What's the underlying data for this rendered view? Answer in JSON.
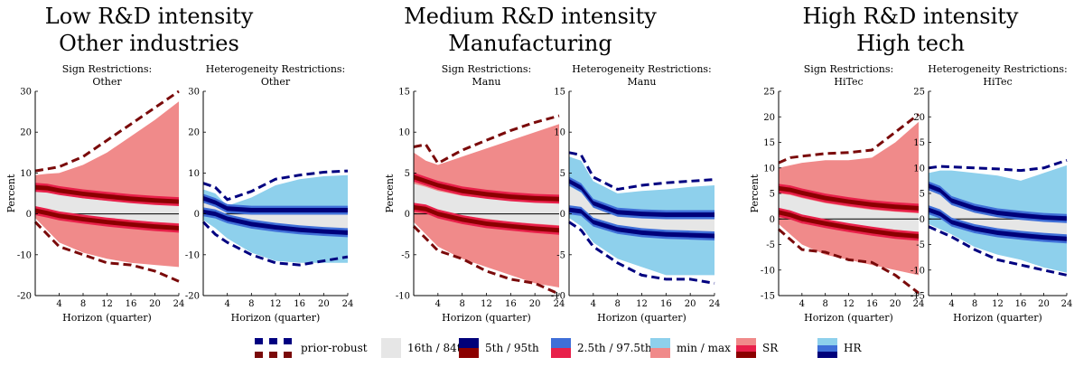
{
  "groups": [
    {
      "title1": "Low R&D intensity",
      "title2": "Other industries"
    },
    {
      "title1": "Medium R&D intensity",
      "title2": "Manufacturing"
    },
    {
      "title1": "High R&D intensity",
      "title2": "High tech"
    }
  ],
  "colors": {
    "sr_minmax": "#f08a8a",
    "sr_25": "#e8204a",
    "sr_5": "#8b0000",
    "sr_prior": "#7a0a0a",
    "hr_minmax": "#8ed0ec",
    "hr_25": "#3f6fd8",
    "hr_5": "#00007a",
    "hr_prior": "#000080",
    "band_16": "#e6e6e6"
  },
  "legend": [
    {
      "label": "prior-robust",
      "swatch": "prior"
    },
    {
      "label": "16th / 84th",
      "swatch": "band16"
    },
    {
      "label": "5th / 95th",
      "swatch": "band5"
    },
    {
      "label": "2.5th / 97.5th",
      "swatch": "band25"
    },
    {
      "label": "min / max",
      "swatch": "minmax"
    },
    {
      "label": "SR",
      "swatch": "sr"
    },
    {
      "label": "HR",
      "swatch": "hr"
    }
  ],
  "chart_data": [
    {
      "type": "area",
      "title": "Sign Restrictions:",
      "subtitle": "Other",
      "method": "SR",
      "xlabel": "Horizon (quarter)",
      "ylabel": "Percent",
      "xlim": [
        0,
        24
      ],
      "ylim": [
        -20,
        30
      ],
      "xticks": [
        4,
        8,
        12,
        16,
        20,
        24
      ],
      "yticks": [
        -20,
        -10,
        0,
        10,
        20,
        30
      ],
      "x": [
        0,
        2,
        4,
        8,
        12,
        16,
        20,
        24
      ],
      "series": [
        {
          "band": "minmax_upper",
          "values": [
            9.5,
            9.8,
            10,
            12,
            15,
            19,
            23,
            27.5
          ]
        },
        {
          "band": "minmax_lower",
          "values": [
            -1,
            -4,
            -7,
            -9.5,
            -11,
            -12,
            -12.5,
            -13
          ]
        },
        {
          "band": "prior_upper",
          "values": [
            10.5,
            11,
            11.5,
            14,
            18,
            22,
            26,
            30
          ]
        },
        {
          "band": "prior_lower",
          "values": [
            -2,
            -5,
            -8,
            -10,
            -12,
            -12.5,
            -14,
            -16.5
          ]
        },
        {
          "band": "p95",
          "values": [
            6.5,
            6.3,
            5.7,
            4.9,
            4.3,
            3.7,
            3.3,
            3
          ]
        },
        {
          "band": "p5",
          "values": [
            0.8,
            0.2,
            -0.5,
            -1.3,
            -2,
            -2.6,
            -3.1,
            -3.5
          ]
        },
        {
          "band": "p84",
          "values": [
            5.5,
            5.2,
            4.7,
            3.8,
            3.2,
            2.7,
            2.3,
            2
          ]
        },
        {
          "band": "p16",
          "values": [
            1.6,
            1,
            0.3,
            -0.6,
            -1.2,
            -1.6,
            -2,
            -2.3
          ]
        }
      ]
    },
    {
      "type": "area",
      "title": "Heterogeneity Restrictions:",
      "subtitle": "Other",
      "method": "HR",
      "xlabel": "Horizon (quarter)",
      "ylabel": "",
      "xlim": [
        0,
        24
      ],
      "ylim": [
        -20,
        30
      ],
      "xticks": [
        4,
        8,
        12,
        16,
        20,
        24
      ],
      "yticks": [
        -20,
        -10,
        0,
        10,
        20,
        30
      ],
      "x": [
        0,
        2,
        4,
        8,
        12,
        16,
        20,
        24
      ],
      "series": [
        {
          "band": "minmax_upper",
          "values": [
            6,
            5,
            2,
            4,
            7,
            8.5,
            9.2,
            9.5
          ]
        },
        {
          "band": "minmax_lower",
          "values": [
            -1.5,
            -3.5,
            -6,
            -9.5,
            -11.5,
            -12,
            -12,
            -12
          ]
        },
        {
          "band": "prior_upper",
          "values": [
            7.5,
            6.5,
            3.5,
            5.5,
            8.5,
            9.5,
            10.2,
            10.5
          ]
        },
        {
          "band": "prior_lower",
          "values": [
            -2,
            -5,
            -7,
            -10,
            -12,
            -12.5,
            -11.5,
            -10.5
          ]
        },
        {
          "band": "p95",
          "values": [
            3.8,
            2.8,
            1.3,
            0.9,
            0.9,
            0.9,
            0.9,
            0.9
          ]
        },
        {
          "band": "p5",
          "values": [
            0.5,
            0,
            -1.2,
            -2.5,
            -3.3,
            -3.9,
            -4.3,
            -4.6
          ]
        },
        {
          "band": "p84",
          "values": [
            3.2,
            2.3,
            0.9,
            0.5,
            0.4,
            0.4,
            0.4,
            0.4
          ]
        },
        {
          "band": "p16",
          "values": [
            1,
            0.5,
            -0.6,
            -1.8,
            -2.6,
            -3.2,
            -3.6,
            -3.9
          ]
        }
      ]
    },
    {
      "type": "area",
      "title": "Sign Restrictions:",
      "subtitle": "Manu",
      "method": "SR",
      "xlabel": "Horizon (quarter)",
      "ylabel": "Percent",
      "xlim": [
        0,
        24
      ],
      "ylim": [
        -10,
        15
      ],
      "xticks": [
        4,
        8,
        12,
        16,
        20,
        24
      ],
      "yticks": [
        -10,
        -5,
        0,
        5,
        10,
        15
      ],
      "x": [
        0,
        2,
        4,
        8,
        12,
        16,
        20,
        24
      ],
      "series": [
        {
          "band": "minmax_upper",
          "values": [
            7.5,
            6.5,
            6,
            7,
            8,
            9,
            10,
            11
          ]
        },
        {
          "band": "minmax_lower",
          "values": [
            -1,
            -2.5,
            -4,
            -5.5,
            -6.5,
            -7.5,
            -8.5,
            -9
          ]
        },
        {
          "band": "prior_upper",
          "values": [
            8.2,
            8.5,
            6.2,
            7.8,
            9,
            10.2,
            11.2,
            12
          ]
        },
        {
          "band": "prior_lower",
          "values": [
            -1.5,
            -3,
            -4.5,
            -5.5,
            -7,
            -8,
            -8.5,
            -9.8
          ]
        },
        {
          "band": "p95",
          "values": [
            4.5,
            4,
            3.5,
            2.8,
            2.4,
            2.1,
            1.9,
            1.8
          ]
        },
        {
          "band": "p5",
          "values": [
            0.8,
            0.6,
            0,
            -0.7,
            -1.2,
            -1.5,
            -1.8,
            -2
          ]
        },
        {
          "band": "p84",
          "values": [
            3.7,
            3.3,
            2.8,
            2.2,
            1.9,
            1.6,
            1.4,
            1.3
          ]
        },
        {
          "band": "p16",
          "values": [
            1.2,
            0.9,
            0.4,
            -0.2,
            -0.6,
            -1,
            -1.2,
            -1.4
          ]
        }
      ]
    },
    {
      "type": "area",
      "title": "Heterogeneity Restrictions:",
      "subtitle": "Manu",
      "method": "HR",
      "xlabel": "Horizon (quarter)",
      "ylabel": "",
      "xlim": [
        0,
        24
      ],
      "ylim": [
        -10,
        15
      ],
      "xticks": [
        4,
        8,
        12,
        16,
        20,
        24
      ],
      "yticks": [
        -10,
        -5,
        0,
        5,
        10,
        15
      ],
      "x": [
        0,
        2,
        4,
        8,
        12,
        16,
        20,
        24
      ],
      "series": [
        {
          "band": "minmax_upper",
          "values": [
            7,
            6.5,
            4,
            2.5,
            2.8,
            3,
            3.3,
            3.5
          ]
        },
        {
          "band": "minmax_lower",
          "values": [
            -0.5,
            -1.5,
            -3.5,
            -5.5,
            -6.5,
            -7.5,
            -7.5,
            -7.5
          ]
        },
        {
          "band": "prior_upper",
          "values": [
            7.5,
            7.2,
            4.5,
            3,
            3.5,
            3.8,
            4,
            4.2
          ]
        },
        {
          "band": "prior_lower",
          "values": [
            -1,
            -2,
            -4,
            -6,
            -7.5,
            -8,
            -8,
            -8.5
          ]
        },
        {
          "band": "p95",
          "values": [
            4,
            3.2,
            1.3,
            0.2,
            0,
            -0.1,
            -0.1,
            -0.1
          ]
        },
        {
          "band": "p5",
          "values": [
            0.5,
            0.3,
            -1,
            -1.9,
            -2.3,
            -2.5,
            -2.6,
            -2.7
          ]
        },
        {
          "band": "p84",
          "values": [
            3.4,
            2.6,
            0.9,
            -0.1,
            -0.3,
            -0.4,
            -0.4,
            -0.4
          ]
        },
        {
          "band": "p16",
          "values": [
            1,
            0.7,
            -0.7,
            -1.6,
            -2,
            -2.2,
            -2.3,
            -2.4
          ]
        }
      ]
    },
    {
      "type": "area",
      "title": "Sign Restrictions:",
      "subtitle": "HiTec",
      "method": "SR",
      "xlabel": "Horizon (quarter)",
      "ylabel": "Percent",
      "xlim": [
        0,
        24
      ],
      "ylim": [
        -15,
        25
      ],
      "xticks": [
        4,
        8,
        12,
        16,
        20,
        24
      ],
      "yticks": [
        -15,
        -10,
        -5,
        0,
        5,
        10,
        15,
        20,
        25
      ],
      "x": [
        0,
        2,
        4,
        8,
        12,
        16,
        20,
        24
      ],
      "series": [
        {
          "band": "minmax_upper",
          "values": [
            10,
            10.5,
            11,
            11.5,
            11.5,
            12,
            15,
            19
          ]
        },
        {
          "band": "minmax_lower",
          "values": [
            -1,
            -3,
            -5,
            -7,
            -8,
            -9,
            -10,
            -11
          ]
        },
        {
          "band": "prior_upper",
          "values": [
            11,
            12,
            12.3,
            12.8,
            13,
            13.5,
            17,
            20.5
          ]
        },
        {
          "band": "prior_lower",
          "values": [
            -2,
            -4,
            -6,
            -6.5,
            -8,
            -8.5,
            -11,
            -14.5
          ]
        },
        {
          "band": "p95",
          "values": [
            6,
            5.7,
            5.1,
            4.1,
            3.4,
            2.8,
            2.4,
            2.1
          ]
        },
        {
          "band": "p5",
          "values": [
            1.3,
            0.8,
            0,
            -0.9,
            -1.7,
            -2.4,
            -3,
            -3.4
          ]
        },
        {
          "band": "p84",
          "values": [
            5,
            4.7,
            4.1,
            3.1,
            2.4,
            1.8,
            1.4,
            1.1
          ]
        },
        {
          "band": "p16",
          "values": [
            2,
            1.5,
            0.7,
            -0.3,
            -1,
            -1.6,
            -2.1,
            -2.5
          ]
        }
      ]
    },
    {
      "type": "area",
      "title": "Heterogeneity Restrictions:",
      "subtitle": "HiTec",
      "method": "HR",
      "xlabel": "Horizon (quarter)",
      "ylabel": "",
      "xlim": [
        0,
        24
      ],
      "ylim": [
        -15,
        25
      ],
      "xticks": [
        4,
        8,
        12,
        16,
        20,
        24
      ],
      "yticks": [
        -15,
        -10,
        -5,
        0,
        5,
        10,
        15,
        20,
        25
      ],
      "x": [
        0,
        2,
        4,
        8,
        12,
        16,
        20,
        24
      ],
      "series": [
        {
          "band": "minmax_upper",
          "values": [
            9,
            9.5,
            9.5,
            9,
            8.5,
            7.5,
            9,
            10.5
          ]
        },
        {
          "band": "minmax_lower",
          "values": [
            -1,
            -2,
            -3,
            -5.5,
            -7,
            -8,
            -9.5,
            -10.5
          ]
        },
        {
          "band": "prior_upper",
          "values": [
            10,
            10.3,
            10.2,
            10,
            9.8,
            9.5,
            10,
            11.5
          ]
        },
        {
          "band": "prior_lower",
          "values": [
            -1.5,
            -2.5,
            -3.5,
            -6,
            -8,
            -9,
            -10,
            -11
          ]
        },
        {
          "band": "p95",
          "values": [
            6.5,
            5.6,
            3.6,
            2.1,
            1.2,
            0.7,
            0.3,
            0.1
          ]
        },
        {
          "band": "p5",
          "values": [
            1.8,
            1,
            -0.6,
            -1.9,
            -2.7,
            -3.2,
            -3.6,
            -3.9
          ]
        },
        {
          "band": "p84",
          "values": [
            5.7,
            4.8,
            2.9,
            1.5,
            0.7,
            0.2,
            -0.2,
            -0.4
          ]
        },
        {
          "band": "p16",
          "values": [
            2.6,
            1.7,
            0,
            -1.3,
            -2.1,
            -2.6,
            -3,
            -3.3
          ]
        }
      ]
    }
  ]
}
